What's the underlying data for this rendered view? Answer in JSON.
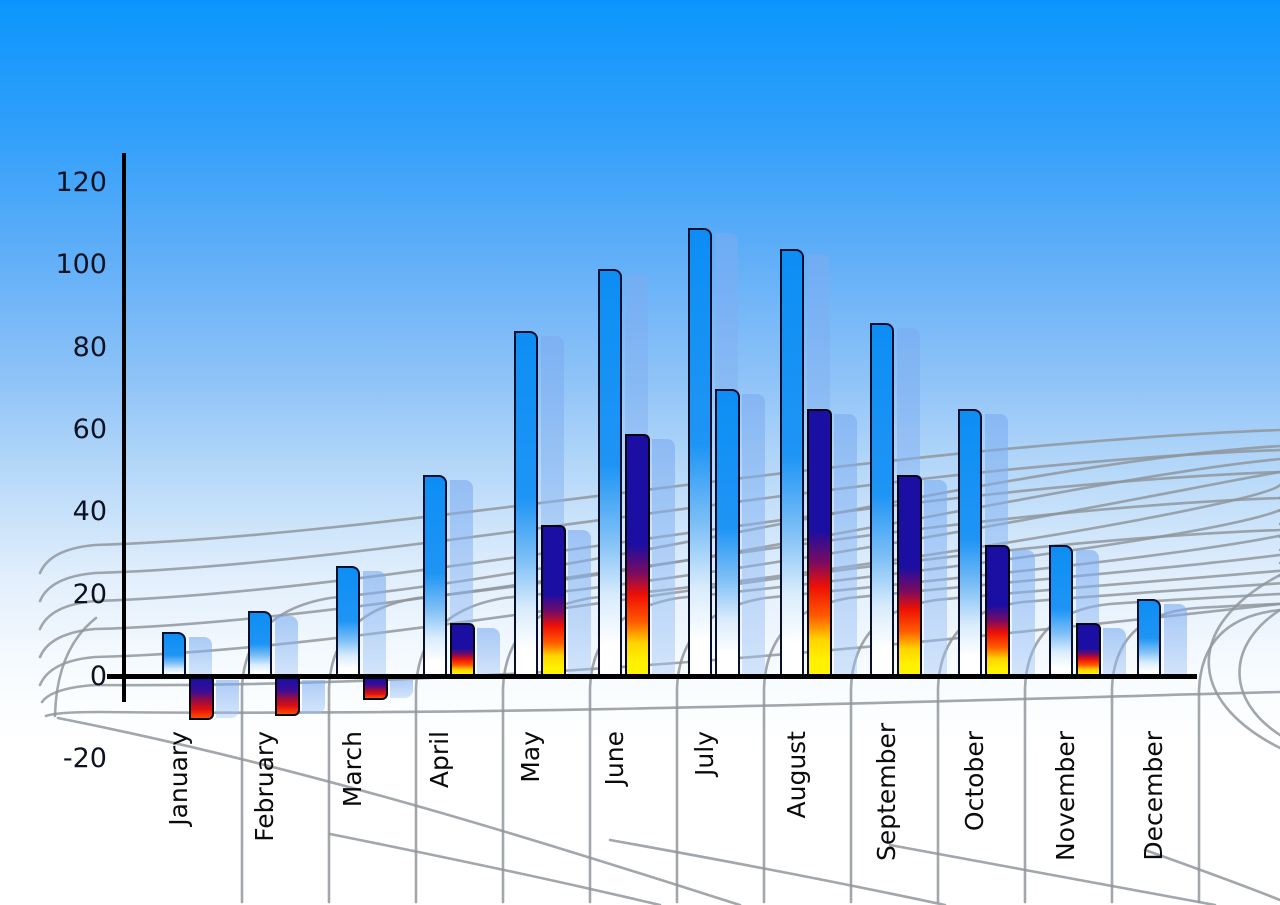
{
  "chart_data": {
    "type": "bar",
    "title": "",
    "xlabel": "",
    "ylabel": "",
    "legend": "none",
    "grid": "perspective-floor-mesh",
    "categories": [
      "January",
      "February",
      "March",
      "April",
      "May",
      "June",
      "July",
      "August",
      "September",
      "October",
      "November",
      "December"
    ],
    "series": [
      {
        "name": "primary-blue-bars",
        "values": [
          11,
          16,
          27,
          49,
          84,
          99,
          109,
          104,
          86,
          65,
          32,
          19
        ]
      },
      {
        "name": "secondary-bars",
        "values": [
          -10,
          -9,
          -5,
          13,
          37,
          59,
          70,
          65,
          49,
          32,
          13,
          null
        ]
      }
    ],
    "secondary_bar_styles": [
      "warm",
      "warm",
      "warm",
      "warm",
      "warm",
      "warm",
      "blue",
      "warm",
      "warm",
      "warm",
      "warm",
      null
    ],
    "yticks": [
      120,
      100,
      80,
      60,
      40,
      20,
      0,
      -20
    ],
    "ylim": [
      -20,
      120
    ]
  },
  "colors": {
    "background_top": "#0b96fd",
    "background_bottom": "#ffffff",
    "bar_blue_top": "#0d8ef4",
    "bar_blue_bottom": "#ffffff",
    "bar_shadow": "#a9c9f2",
    "warm_navy": "#1b0ea2",
    "warm_red": "#ee1005",
    "warm_yellow": "#fff200",
    "grid_line": "#8e949a",
    "axis_line": "#000000",
    "tick_label_color": "#0d1220",
    "month_label_color": "#0b0b0e"
  }
}
